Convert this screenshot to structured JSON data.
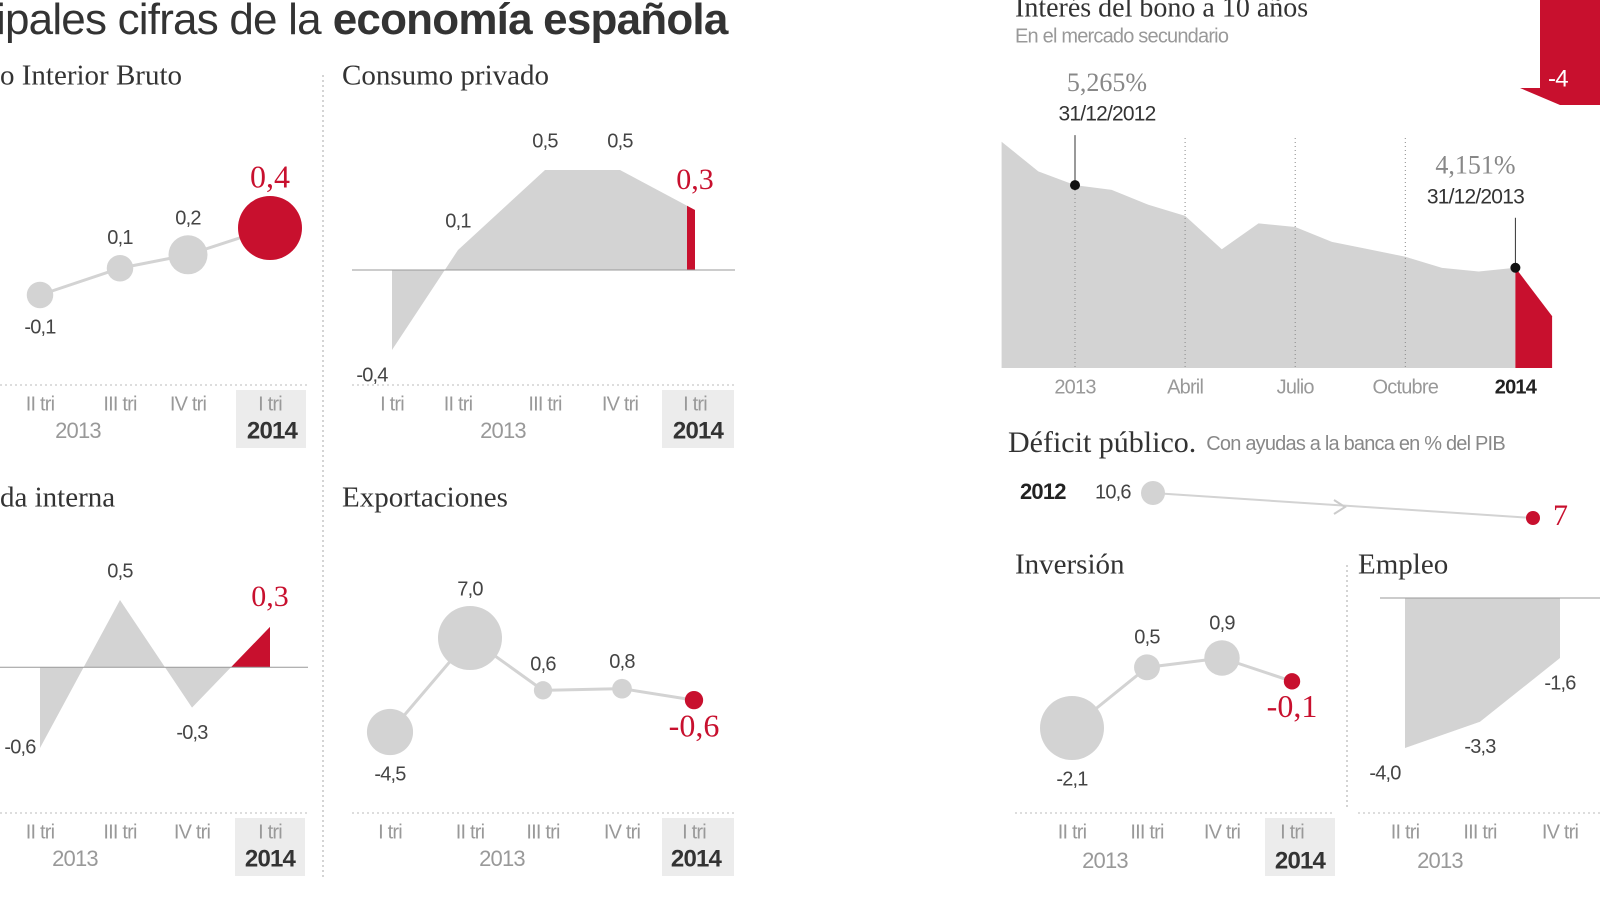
{
  "header": {
    "title": "ipales cifras de la",
    "title_bold": "economía española"
  },
  "chart_data": [
    {
      "type": "line",
      "title": "o Interior Bruto",
      "categories": [
        "II tri",
        "III tri",
        "IV tri",
        "I tri"
      ],
      "values": [
        -0.1,
        0.1,
        0.2,
        0.4
      ],
      "value_labels": [
        "-0,1",
        "0,1",
        "0,2",
        "0,4"
      ],
      "group_labels": [
        "2013",
        "2014"
      ],
      "color": "#d3d3d3",
      "highlight_color": "#c8102e"
    },
    {
      "type": "area",
      "title": "Consumo privado",
      "categories": [
        "I tri",
        "II tri",
        "III tri",
        "IV tri",
        "I tri"
      ],
      "values": [
        -0.4,
        0.1,
        0.5,
        0.5,
        0.3
      ],
      "value_labels": [
        "-0,4",
        "0,1",
        "0,5",
        "0,5",
        "0,3"
      ],
      "group_labels": [
        "2013",
        "2014"
      ],
      "color": "#d3d3d3",
      "highlight_color": "#c8102e"
    },
    {
      "type": "area",
      "title": "da interna",
      "categories": [
        "II tri",
        "III tri",
        "IV tri",
        "I tri"
      ],
      "values": [
        -0.6,
        0.5,
        -0.3,
        0.3
      ],
      "value_labels": [
        "-0,6",
        "0,5",
        "-0,3",
        "0,3"
      ],
      "group_labels": [
        "2013",
        "2014"
      ],
      "color": "#d3d3d3",
      "highlight_color": "#c8102e"
    },
    {
      "type": "line",
      "title": "Exportaciones",
      "categories": [
        "I tri",
        "II tri",
        "III tri",
        "IV tri",
        "I tri"
      ],
      "values": [
        -4.5,
        7.0,
        0.6,
        0.8,
        -0.6
      ],
      "value_labels": [
        "-4,5",
        "7,0",
        "0,6",
        "0,8",
        "-0,6"
      ],
      "group_labels": [
        "2013",
        "2014"
      ],
      "color": "#d3d3d3",
      "highlight_color": "#c8102e"
    },
    {
      "type": "timeseries",
      "title": "Interés del bono a 10 años",
      "subtitle": "En el mercado secundario",
      "badge": "-4",
      "categories": [
        null,
        null,
        "2013",
        null,
        null,
        "Abril",
        null,
        null,
        "Julio",
        null,
        null,
        "Octubre",
        null,
        null,
        "2014",
        null
      ],
      "ylim": [
        2.8,
        5.9
      ],
      "series": [
        {
          "color": "#d3d3d3",
          "values": [
            5.85,
            5.45,
            5.265,
            5.2,
            5.0,
            4.85,
            4.4,
            4.75,
            4.7,
            4.5,
            4.4,
            4.3,
            4.15,
            4.1,
            4.151,
            null
          ],
          "value_labels": [
            null,
            null,
            "5,265%",
            null,
            null,
            null,
            null,
            null,
            null,
            null,
            null,
            null,
            null,
            null,
            "4,151%",
            null
          ],
          "point_dates": [
            null,
            null,
            "31/12/2012",
            null,
            null,
            null,
            null,
            null,
            null,
            null,
            null,
            null,
            null,
            null,
            "31/12/2013",
            null
          ]
        },
        {
          "color": "#c8102e",
          "values": [
            null,
            null,
            null,
            null,
            null,
            null,
            null,
            null,
            null,
            null,
            null,
            null,
            null,
            null,
            4.151,
            3.5
          ]
        }
      ]
    },
    {
      "type": "dumbbell",
      "title": "Déficit público.",
      "subtitle": "Con ayudas a la banca en % del PIB",
      "categories": [
        "2012",
        null
      ],
      "values": [
        10.6,
        7
      ],
      "value_labels": [
        "10,6",
        "7"
      ],
      "color": "#d3d3d3",
      "highlight_color": "#c8102e"
    },
    {
      "type": "line",
      "title": "Inversión",
      "categories": [
        "II tri",
        "III tri",
        "IV tri",
        "I tri"
      ],
      "values": [
        -2.1,
        0.5,
        0.9,
        -0.1
      ],
      "value_labels": [
        "-2,1",
        "0,5",
        "0,9",
        "-0,1"
      ],
      "group_labels": [
        "2013",
        "2014"
      ],
      "color": "#d3d3d3",
      "highlight_color": "#c8102e"
    },
    {
      "type": "area",
      "title": "Empleo",
      "categories": [
        "II tri",
        "III tri",
        "IV tri"
      ],
      "values": [
        -4.0,
        -3.3,
        -1.6
      ],
      "value_labels": [
        "-4,0",
        "-3,3",
        "-1,6"
      ],
      "group_labels": [
        "2013"
      ],
      "color": "#d3d3d3",
      "highlight_color": "#c8102e"
    }
  ]
}
